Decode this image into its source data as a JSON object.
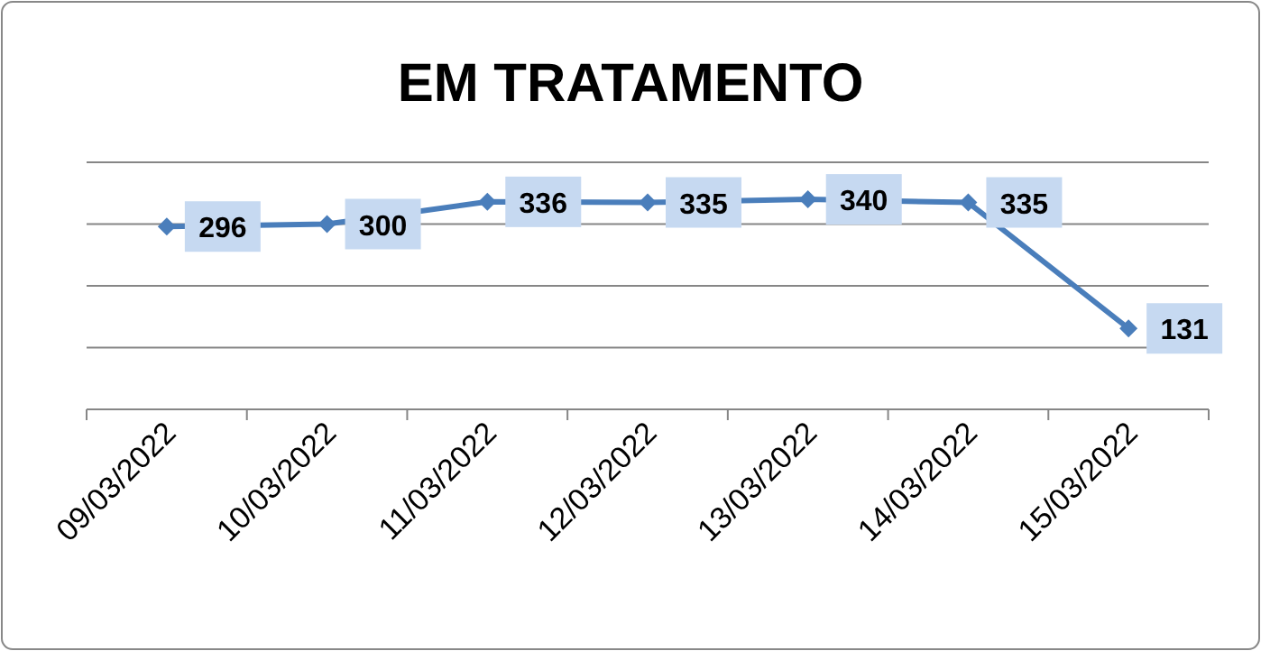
{
  "chart_data": {
    "type": "line",
    "title": "EM TRATAMENTO",
    "categories": [
      "09/03/2022",
      "10/03/2022",
      "11/03/2022",
      "12/03/2022",
      "13/03/2022",
      "14/03/2022",
      "15/03/2022"
    ],
    "series": [
      {
        "color": "#4a7ebb",
        "values": [
          296,
          300,
          336,
          335,
          340,
          335,
          131
        ]
      }
    ],
    "ylim": [
      0,
      400
    ],
    "yticks": [
      {
        "value": 0,
        "label": null
      },
      {
        "value": 100,
        "label": null
      },
      {
        "value": 200,
        "label": null
      },
      {
        "value": 300,
        "label": null
      },
      {
        "value": 400,
        "label": null
      }
    ],
    "tick_labels": "x",
    "grid": "y",
    "marker": "diamond",
    "line_style": "solid",
    "data_labels": true
  }
}
